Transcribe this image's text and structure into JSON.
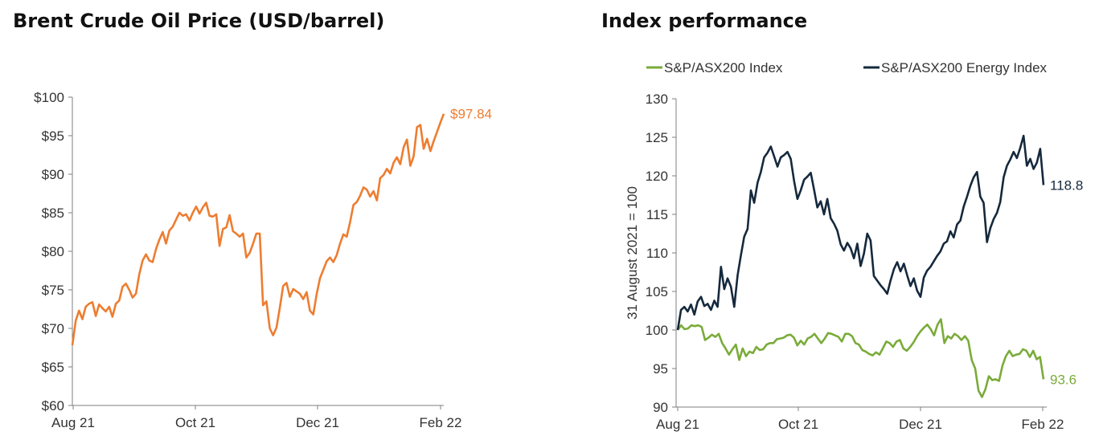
{
  "chart_data": [
    {
      "type": "line",
      "title": "Brent Crude Oil Price (USD/barrel)",
      "xlabel": "",
      "ylabel": "",
      "x_ticks": [
        "Aug 21",
        "Oct 21",
        "Dec 21",
        "Feb 22"
      ],
      "y_ticks": [
        "$60",
        "$65",
        "$70",
        "$75",
        "$80",
        "$85",
        "$90",
        "$95",
        "$100"
      ],
      "ylim": [
        60,
        100
      ],
      "grid": false,
      "end_label": "$97.84",
      "series": [
        {
          "color": "#ED7D31",
          "values": [
            67.8,
            71,
            72.3,
            71.2,
            72.8,
            73.2,
            73.4,
            71.6,
            73.1,
            72.6,
            72.2,
            72.8,
            71.5,
            73.2,
            73.6,
            75.4,
            75.8,
            75,
            74,
            74.5,
            77,
            78.8,
            79.6,
            78.8,
            78.6,
            80.3,
            81.5,
            82.5,
            81,
            82.7,
            83.2,
            84.1,
            85,
            84.6,
            84.8,
            84,
            85,
            85.8,
            84.9,
            85.7,
            86.3,
            84.6,
            84.5,
            84.8,
            80.7,
            82.9,
            83.1,
            84.7,
            82.6,
            82.3,
            81.9,
            82.3,
            79.2,
            79.8,
            81,
            82.3,
            82.3,
            73,
            73.5,
            70,
            69.1,
            70.1,
            72.7,
            75.5,
            75.9,
            74.1,
            75.1,
            74.8,
            74.5,
            73.8,
            74.7,
            72.3,
            71.8,
            74.4,
            76.5,
            77.6,
            78.7,
            79.2,
            78.6,
            79.5,
            81,
            82.2,
            81.9,
            83.8,
            86,
            86.4,
            87.2,
            88.3,
            88,
            87.1,
            87.8,
            86.6,
            89.5,
            89.9,
            90.7,
            90.1,
            91.5,
            92.2,
            91.3,
            93.5,
            94.5,
            91.1,
            92.3,
            96.1,
            96.4,
            93.3,
            94.6,
            93,
            94.3,
            95.5,
            96.7,
            97.84
          ]
        }
      ]
    },
    {
      "type": "line",
      "title": "Index performance",
      "xlabel": "",
      "ylabel": "31 August 2021 = 100",
      "x_ticks": [
        "Aug 21",
        "Oct 21",
        "Dec 21",
        "Feb 22"
      ],
      "y_ticks": [
        "90",
        "95",
        "100",
        "105",
        "110",
        "115",
        "120",
        "125",
        "130"
      ],
      "ylim": [
        90,
        130
      ],
      "grid": false,
      "legend_position": "top",
      "series": [
        {
          "name": "S&P/ASX200 Index",
          "color": "#7AAB3A",
          "end_label": "93.6",
          "values": [
            100,
            100.6,
            100.1,
            100.2,
            100.6,
            100.5,
            100.6,
            100.4,
            98.7,
            99,
            99.4,
            99.1,
            99.5,
            98.3,
            97.6,
            96.8,
            97.5,
            98.1,
            96.1,
            97.6,
            96.6,
            97.2,
            97,
            97.8,
            97.4,
            97.5,
            98.1,
            98.3,
            98.3,
            98.8,
            98.9,
            99,
            99.3,
            99.4,
            99,
            98,
            98.6,
            98.1,
            98.9,
            99.1,
            99.5,
            98.9,
            98.3,
            98.9,
            99.6,
            99.5,
            99.3,
            99.1,
            98.5,
            99.5,
            99.5,
            99.2,
            98.3,
            98.1,
            97.4,
            97.2,
            96.9,
            96.7,
            97.1,
            96.8,
            97.6,
            98.5,
            98.3,
            97.8,
            98.5,
            98.7,
            97.6,
            97.3,
            97.8,
            98.4,
            99.2,
            99.8,
            100.3,
            100.7,
            100.1,
            99.3,
            100.7,
            101.4,
            98.3,
            99.2,
            98.9,
            99.5,
            99.2,
            98.7,
            99.2,
            98.6,
            96.1,
            95,
            92.1,
            91.3,
            92.3,
            94,
            93.5,
            93.6,
            93.4,
            95.4,
            96.6,
            97.3,
            96.6,
            96.8,
            96.9,
            97.5,
            97.3,
            96.5,
            97.3,
            96.2,
            96.5,
            93.6
          ]
        },
        {
          "name": "S&P/ASX200 Energy Index",
          "color": "#15293D",
          "end_label": "118.8",
          "values": [
            100,
            102.6,
            103,
            102.4,
            103.3,
            102,
            103.7,
            104.3,
            103.1,
            103.4,
            102.6,
            103.8,
            103,
            108.2,
            105.3,
            106.7,
            105.6,
            103,
            107.1,
            109.7,
            112.1,
            113.1,
            118.1,
            116.5,
            119.1,
            120.5,
            122.4,
            123,
            123.8,
            122.5,
            121.2,
            122.4,
            122.7,
            123.1,
            122.2,
            119.3,
            117,
            118.1,
            119.5,
            119.9,
            120.4,
            118.2,
            115.9,
            116.7,
            115,
            117,
            114.5,
            113.8,
            112.9,
            111.1,
            110.3,
            111.3,
            110.6,
            109.3,
            111.2,
            108.3,
            109.9,
            112.5,
            111.6,
            107,
            106.4,
            105.8,
            105.3,
            104.7,
            106.4,
            107.9,
            108.8,
            107.6,
            108.6,
            107.1,
            105.7,
            106.7,
            105.1,
            104.3,
            106.8,
            107.7,
            108.2,
            108.9,
            109.6,
            110.2,
            111.2,
            111.5,
            112.8,
            112,
            113.7,
            114.2,
            116,
            117.3,
            118.7,
            119.8,
            120.5,
            117.3,
            116.5,
            111.4,
            113.2,
            114.4,
            115.2,
            116.6,
            119.8,
            121.3,
            122.1,
            123.1,
            122.3,
            123.6,
            125.2,
            121.3,
            122.2,
            120.9,
            121.7,
            123.5,
            118.8
          ]
        }
      ]
    }
  ]
}
